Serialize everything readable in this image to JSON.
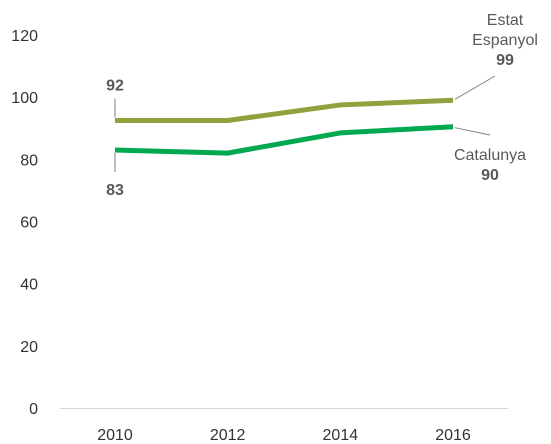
{
  "chart_data": {
    "type": "line",
    "x": [
      2010,
      2012,
      2014,
      2016
    ],
    "ylim": [
      0,
      120
    ],
    "yticks": [
      0,
      20,
      40,
      60,
      80,
      100,
      120
    ],
    "grid": false,
    "legend": "none",
    "series": [
      {
        "name": "Estat Espanyol",
        "name_lines": [
          "Estat",
          "Espanyol"
        ],
        "values": [
          92.5,
          92.5,
          97.5,
          99
        ],
        "color": "#8fa23e",
        "labels": [
          {
            "point_index": 0,
            "text": "92"
          },
          {
            "point_index": 3,
            "text": "99"
          }
        ]
      },
      {
        "name": "Catalunya",
        "name_lines": [
          "Catalunya"
        ],
        "values": [
          83,
          82,
          88.5,
          90.5
        ],
        "color": "#00a850",
        "labels": [
          {
            "point_index": 0,
            "text": "83"
          },
          {
            "point_index": 3,
            "text": "90"
          }
        ]
      }
    ]
  }
}
